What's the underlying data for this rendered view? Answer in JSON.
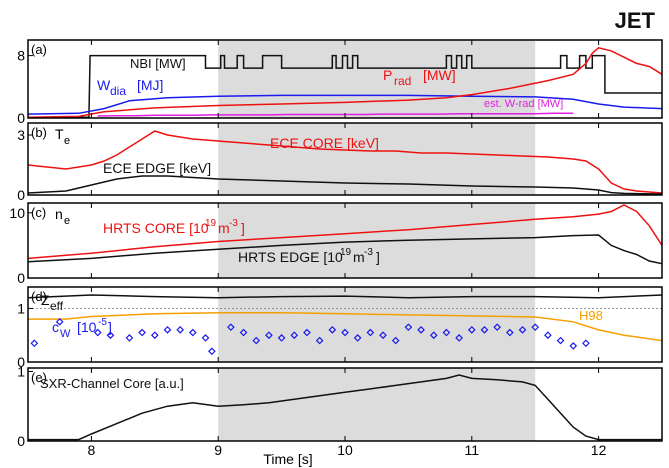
{
  "figure": {
    "corner_label": "JET",
    "x_axis_label": "Time [s]",
    "x_ticks": [
      "8",
      "9",
      "10",
      "11",
      "12"
    ]
  },
  "colors": {
    "black": "#111111",
    "red": "#ee1111",
    "blue": "#1a1aee",
    "magenta": "#e020e0",
    "orange": "#f5a000",
    "shade": "#dcdcdc"
  },
  "chart_data": [
    {
      "type": "line",
      "panel": "(a)",
      "y_tick_labels": [
        "0",
        "8"
      ],
      "ylim": [
        0,
        10
      ],
      "xlim": [
        7.5,
        12.5
      ],
      "shaded_x": [
        9.0,
        11.5
      ],
      "series": [
        {
          "name": "NBI [MW]",
          "color": "black",
          "x": [
            7.5,
            7.98,
            7.99,
            8.9,
            8.9,
            9.02,
            9.02,
            9.05,
            9.05,
            9.15,
            9.15,
            9.2,
            9.2,
            9.35,
            9.35,
            9.5,
            9.5,
            9.9,
            9.9,
            9.93,
            9.93,
            9.98,
            9.98,
            10.02,
            10.02,
            10.06,
            10.06,
            10.1,
            10.1,
            10.8,
            10.8,
            10.84,
            10.84,
            10.88,
            10.88,
            10.92,
            10.92,
            10.96,
            10.96,
            11.0,
            11.0,
            11.7,
            11.7,
            11.75,
            11.75,
            11.85,
            11.85,
            11.9,
            11.9,
            11.95,
            11.95,
            12.05,
            12.05,
            12.5
          ],
          "y": [
            0.1,
            0.1,
            8.0,
            8.0,
            6.4,
            6.4,
            8.0,
            8.0,
            6.4,
            6.4,
            8.0,
            8.0,
            6.4,
            6.4,
            8.0,
            8.0,
            6.4,
            6.4,
            8.0,
            8.0,
            6.4,
            6.4,
            8.0,
            8.0,
            6.4,
            6.4,
            8.0,
            8.0,
            6.4,
            6.4,
            8.0,
            8.0,
            6.4,
            6.4,
            8.0,
            8.0,
            6.4,
            6.4,
            8.0,
            8.0,
            6.4,
            6.4,
            8.0,
            8.0,
            6.4,
            6.4,
            8.0,
            8.0,
            6.4,
            6.4,
            8.0,
            8.0,
            3.2,
            3.2
          ]
        },
        {
          "name": "W_dia [MJ]",
          "color": "blue",
          "x": [
            7.5,
            7.9,
            8.1,
            8.3,
            8.6,
            9.0,
            9.5,
            10.0,
            10.5,
            11.0,
            11.5,
            11.8,
            12.0,
            12.2,
            12.5
          ],
          "y": [
            0.5,
            0.6,
            1.2,
            2.2,
            2.6,
            2.8,
            2.9,
            2.9,
            2.9,
            2.8,
            2.7,
            2.4,
            1.8,
            1.4,
            1.2
          ]
        },
        {
          "name": "P_rad [MW]",
          "color": "red",
          "x": [
            7.5,
            7.9,
            8.1,
            8.5,
            9.0,
            9.5,
            10.0,
            10.5,
            10.8,
            11.0,
            11.3,
            11.6,
            11.8,
            11.9,
            11.95,
            12.0,
            12.1,
            12.2,
            12.3,
            12.4,
            12.5
          ],
          "y": [
            0.1,
            0.2,
            0.8,
            1.3,
            1.6,
            1.8,
            2.0,
            2.3,
            2.6,
            3.0,
            3.8,
            4.8,
            5.6,
            7.0,
            8.3,
            9.0,
            8.6,
            7.8,
            7.0,
            6.6,
            5.6
          ]
        },
        {
          "name": "est. W-rad [MW]",
          "color": "magenta",
          "x": [
            8.05,
            8.2,
            8.35,
            8.5,
            8.65,
            8.8,
            8.95,
            9.1,
            9.25,
            9.4,
            9.55,
            9.7,
            9.85,
            10.0,
            10.15,
            10.3,
            10.45,
            10.6,
            10.75,
            10.9,
            11.05,
            11.2,
            11.35,
            11.5,
            11.65,
            11.8
          ],
          "y": [
            0.25,
            0.3,
            0.3,
            0.35,
            0.35,
            0.35,
            0.4,
            0.4,
            0.4,
            0.4,
            0.45,
            0.45,
            0.45,
            0.45,
            0.45,
            0.5,
            0.5,
            0.5,
            0.5,
            0.55,
            0.55,
            0.55,
            0.55,
            0.55,
            0.6,
            0.6
          ]
        }
      ]
    },
    {
      "type": "line",
      "panel": "(b)",
      "y_label": "T_e",
      "y_tick_labels": [
        "0",
        "3"
      ],
      "ylim": [
        0,
        3.6
      ],
      "xlim": [
        7.5,
        12.5
      ],
      "shaded_x": [
        9.0,
        11.5
      ],
      "series": [
        {
          "name": "ECE CORE [keV]",
          "color": "red",
          "x": [
            7.5,
            7.8,
            8.0,
            8.1,
            8.2,
            8.3,
            8.4,
            8.5,
            8.6,
            8.8,
            9.0,
            9.2,
            9.4,
            9.6,
            9.8,
            10.0,
            10.2,
            10.4,
            10.6,
            10.8,
            11.0,
            11.2,
            11.4,
            11.6,
            11.8,
            11.9,
            12.0,
            12.1,
            12.2,
            12.3,
            12.4,
            12.5
          ],
          "y": [
            1.5,
            1.3,
            1.5,
            1.7,
            2.0,
            2.4,
            2.8,
            3.2,
            3.0,
            2.8,
            2.7,
            2.6,
            2.5,
            2.4,
            2.3,
            2.25,
            2.2,
            2.2,
            2.1,
            2.1,
            2.05,
            2.0,
            1.95,
            1.9,
            1.8,
            1.7,
            1.3,
            0.6,
            0.3,
            0.2,
            0.15,
            0.1
          ]
        },
        {
          "name": "ECE EDGE [keV]",
          "color": "black",
          "x": [
            7.5,
            7.8,
            8.0,
            8.2,
            8.4,
            8.6,
            9.0,
            9.5,
            10.0,
            10.5,
            11.0,
            11.5,
            11.8,
            11.9,
            12.0,
            12.1,
            12.2,
            12.5
          ],
          "y": [
            0.1,
            0.2,
            0.5,
            0.8,
            0.95,
            0.95,
            0.8,
            0.7,
            0.6,
            0.55,
            0.45,
            0.4,
            0.35,
            0.3,
            0.25,
            0.12,
            0.08,
            0.05
          ]
        }
      ]
    },
    {
      "type": "line",
      "panel": "(c)",
      "y_label": "n_e",
      "y_tick_labels": [
        "0",
        "10"
      ],
      "ylim": [
        0,
        11.5
      ],
      "xlim": [
        7.5,
        12.5
      ],
      "shaded_x": [
        9.0,
        11.5
      ],
      "series": [
        {
          "name": "HRTS CORE [10^19 m^-3]",
          "color": "red",
          "x": [
            7.5,
            8.0,
            8.5,
            9.0,
            9.5,
            10.0,
            10.5,
            11.0,
            11.5,
            11.8,
            12.0,
            12.1,
            12.2,
            12.3,
            12.4,
            12.5
          ],
          "y": [
            3.0,
            3.8,
            4.8,
            5.6,
            6.2,
            6.8,
            7.4,
            8.2,
            9.0,
            9.4,
            9.8,
            10.2,
            11.2,
            10.2,
            8.0,
            5.0
          ]
        },
        {
          "name": "HRTS EDGE [10^19 m^-3]",
          "color": "black",
          "x": [
            7.5,
            8.0,
            8.5,
            9.0,
            9.5,
            10.0,
            10.5,
            11.0,
            11.5,
            11.8,
            12.0,
            12.1,
            12.2,
            12.3,
            12.4,
            12.5
          ],
          "y": [
            2.5,
            3.0,
            3.8,
            4.4,
            5.0,
            5.5,
            5.8,
            6.0,
            6.2,
            6.5,
            6.6,
            5.0,
            4.2,
            3.6,
            2.6,
            2.2
          ]
        }
      ]
    },
    {
      "type": "line",
      "panel": "(d)",
      "y_tick_labels": [
        "0",
        "1"
      ],
      "ylim": [
        0,
        1.4
      ],
      "xlim": [
        7.5,
        12.5
      ],
      "shaded_x": [
        9.0,
        11.5
      ],
      "reference_line_y": 1.0,
      "series": [
        {
          "name": "Z_eff",
          "color": "black",
          "x": [
            7.5,
            8.0,
            8.5,
            9.0,
            9.5,
            10.0,
            10.5,
            11.0,
            11.5,
            12.0,
            12.5
          ],
          "y": [
            1.2,
            1.25,
            1.22,
            1.2,
            1.22,
            1.23,
            1.2,
            1.22,
            1.22,
            1.2,
            1.25
          ]
        },
        {
          "name": "H98",
          "color": "orange",
          "x": [
            7.5,
            7.8,
            8.0,
            8.5,
            9.0,
            9.5,
            10.0,
            10.5,
            11.0,
            11.5,
            11.8,
            12.0,
            12.2,
            12.5
          ],
          "y": [
            0.8,
            0.8,
            0.85,
            0.9,
            0.92,
            0.92,
            0.9,
            0.88,
            0.86,
            0.84,
            0.75,
            0.6,
            0.5,
            0.4
          ]
        },
        {
          "name": "c_W [10^-5]",
          "color": "blue",
          "style": "markers",
          "x": [
            7.55,
            7.75,
            8.05,
            8.15,
            8.3,
            8.4,
            8.5,
            8.6,
            8.7,
            8.8,
            8.9,
            8.95,
            9.1,
            9.2,
            9.3,
            9.4,
            9.5,
            9.6,
            9.7,
            9.8,
            9.9,
            10.0,
            10.1,
            10.2,
            10.3,
            10.4,
            10.5,
            10.6,
            10.7,
            10.8,
            10.9,
            11.0,
            11.1,
            11.2,
            11.3,
            11.4,
            11.5,
            11.6,
            11.7,
            11.8,
            11.9
          ],
          "y": [
            0.35,
            0.75,
            0.55,
            0.5,
            0.45,
            0.55,
            0.5,
            0.6,
            0.6,
            0.55,
            0.45,
            0.2,
            0.65,
            0.55,
            0.4,
            0.5,
            0.45,
            0.5,
            0.55,
            0.4,
            0.6,
            0.55,
            0.45,
            0.55,
            0.5,
            0.4,
            0.65,
            0.6,
            0.5,
            0.55,
            0.45,
            0.6,
            0.6,
            0.65,
            0.55,
            0.6,
            0.65,
            0.5,
            0.4,
            0.3,
            0.35
          ]
        }
      ]
    },
    {
      "type": "line",
      "panel": "(e)",
      "y_tick_labels": [
        "0",
        "1"
      ],
      "ylim": [
        0,
        1.05
      ],
      "xlim": [
        7.5,
        12.5
      ],
      "shaded_x": [
        9.0,
        11.5
      ],
      "series": [
        {
          "name": "SXR-Channel Core [a.u.]",
          "color": "black",
          "x": [
            7.5,
            7.9,
            8.0,
            8.2,
            8.4,
            8.6,
            8.8,
            9.0,
            9.2,
            9.4,
            9.6,
            9.8,
            10.0,
            10.2,
            10.4,
            10.6,
            10.8,
            10.9,
            11.0,
            11.2,
            11.4,
            11.5,
            11.6,
            11.7,
            11.8,
            11.9,
            12.0,
            12.5
          ],
          "y": [
            0.02,
            0.02,
            0.1,
            0.25,
            0.4,
            0.5,
            0.55,
            0.5,
            0.52,
            0.55,
            0.6,
            0.65,
            0.7,
            0.75,
            0.8,
            0.85,
            0.9,
            0.95,
            0.9,
            0.88,
            0.85,
            0.8,
            0.6,
            0.4,
            0.2,
            0.07,
            0.02,
            0.02
          ]
        }
      ]
    }
  ]
}
